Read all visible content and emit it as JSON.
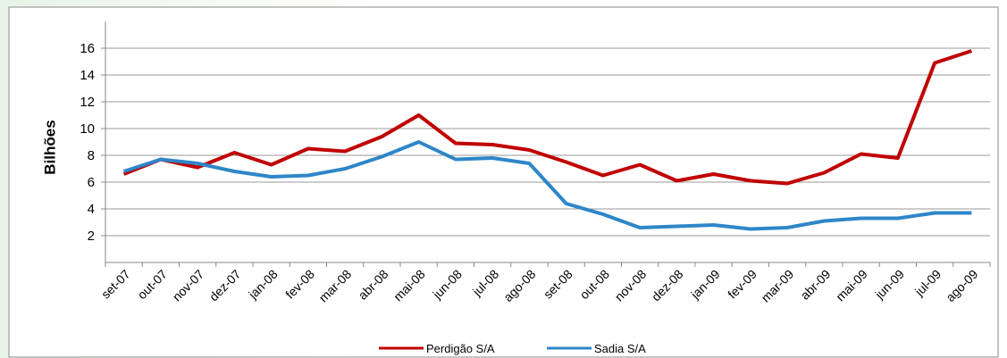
{
  "chart_data": {
    "type": "line",
    "y_label": "Bilhões",
    "categories": [
      "set-07",
      "out-07",
      "nov-07",
      "dez-07",
      "jan-08",
      "fev-08",
      "mar-08",
      "abr-08",
      "mai-08",
      "jun-08",
      "jul-08",
      "ago-08",
      "set-08",
      "out-08",
      "nov-08",
      "dez-08",
      "jan-09",
      "fev-09",
      "mar-09",
      "abr-09",
      "mai-09",
      "jun-09",
      "jul-09",
      "ago-09"
    ],
    "series": [
      {
        "name": "Perdigão S/A",
        "color": "#c00000",
        "values": [
          6.6,
          7.7,
          7.1,
          8.2,
          7.3,
          8.5,
          8.3,
          9.4,
          11.0,
          8.9,
          8.8,
          8.4,
          7.5,
          6.5,
          7.3,
          6.1,
          6.6,
          6.1,
          5.9,
          6.7,
          8.1,
          7.8,
          14.9,
          15.8
        ]
      },
      {
        "name": "Sadia S/A",
        "color": "#2e86c8",
        "values": [
          6.8,
          7.7,
          7.4,
          6.8,
          6.4,
          6.5,
          7.0,
          7.9,
          9.0,
          7.7,
          7.8,
          7.4,
          4.4,
          3.6,
          2.6,
          2.7,
          2.8,
          2.5,
          2.6,
          3.1,
          3.3,
          3.3,
          3.7,
          3.7
        ]
      }
    ],
    "ylim": [
      0,
      18
    ],
    "yticks": [
      2,
      4,
      6,
      8,
      10,
      12,
      14,
      16
    ],
    "grid": true,
    "legend": "bottom"
  }
}
